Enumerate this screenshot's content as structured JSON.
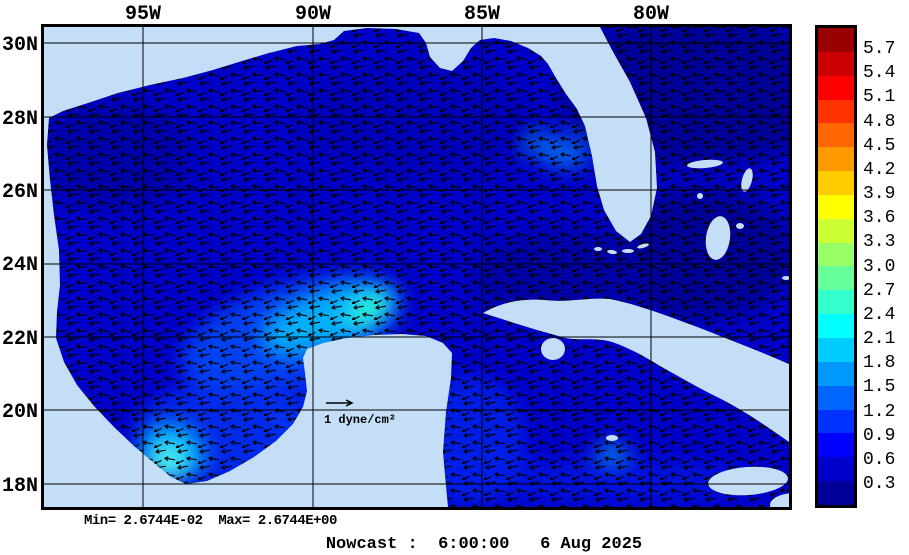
{
  "map": {
    "lon_labels": [
      "95W",
      "90W",
      "85W",
      "80W"
    ],
    "lat_labels": [
      "30N",
      "28N",
      "26N",
      "24N",
      "22N",
      "20N",
      "18N"
    ],
    "reference_label": "1 dyne/cm²"
  },
  "colorbar": {
    "tick_labels": [
      "5.7",
      "5.4",
      "5.1",
      "4.8",
      "4.5",
      "4.2",
      "3.9",
      "3.6",
      "3.3",
      "3.0",
      "2.7",
      "2.4",
      "2.1",
      "1.8",
      "1.5",
      "1.2",
      "0.9",
      "0.6",
      "0.3"
    ],
    "segment_colors": [
      "#990000",
      "#cc0000",
      "#ff0000",
      "#ff3300",
      "#ff6600",
      "#ff9900",
      "#ffcc00",
      "#ffff00",
      "#ccff33",
      "#99ff66",
      "#66ff99",
      "#33ffcc",
      "#00ffff",
      "#00ccff",
      "#0099ff",
      "#0066ff",
      "#0033ff",
      "#0000ff",
      "#0000cc",
      "#000099"
    ]
  },
  "footer": {
    "stats": "Min= 2.6744E-02  Max= 2.6744E+00",
    "timestamp": "Nowcast :  6:00:00   6 Aug 2025"
  },
  "colors": {
    "land": "#c3def6",
    "ocean": "#0000c8",
    "grid": "#000000",
    "frame": "#000000"
  }
}
